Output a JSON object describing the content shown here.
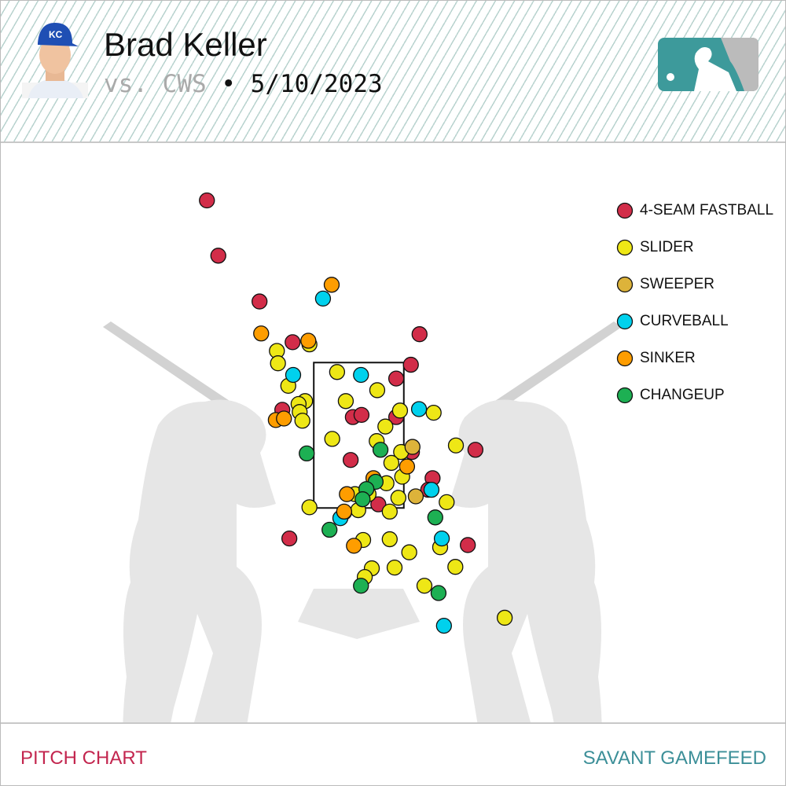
{
  "header": {
    "title": "Brad Keller",
    "opponent": "vs. CWS",
    "separator": "•",
    "date": "5/10/2023"
  },
  "chart_data": {
    "type": "scatter",
    "xlim": [
      -6.6,
      7.89
    ],
    "ylim": [
      -1.47,
      6.53
    ],
    "strike_zone": {
      "x": [
        -0.83,
        0.83
      ],
      "y": [
        1.5,
        3.5
      ]
    },
    "series": [
      {
        "name": "4-SEAM FASTBALL",
        "color": "#d22d49",
        "x": [
          -2.8,
          -2.59,
          -1.83,
          -1.22,
          1.12,
          0.96,
          0.69,
          -0.11,
          0.05,
          0.69,
          -0.15,
          0.98,
          2.15,
          1.36,
          1.28,
          0.36,
          -1.28,
          2.01,
          -1.41
        ],
        "y": [
          5.73,
          4.97,
          4.34,
          3.78,
          3.89,
          3.47,
          3.28,
          2.75,
          2.78,
          2.75,
          2.16,
          2.27,
          2.3,
          1.91,
          1.75,
          1.55,
          1.08,
          0.99,
          2.85
        ]
      },
      {
        "name": "SLIDER",
        "color": "#eee716",
        "x": [
          -1.51,
          -1.49,
          -0.91,
          -0.4,
          0.34,
          -1.3,
          -0.99,
          -1.11,
          -1.09,
          -1.04,
          -0.24,
          0.76,
          1.38,
          0.49,
          -0.49,
          0.33,
          0.78,
          0.6,
          1.79,
          0.8,
          0.51,
          1.62,
          0.73,
          -0.91,
          -0.01,
          0.57,
          -0.27,
          0.08,
          0.57,
          0.93,
          1.5,
          0.24,
          0.66,
          1.78,
          0.11,
          1.21,
          2.69,
          -0.07,
          0.18
        ],
        "y": [
          3.66,
          3.49,
          3.75,
          3.37,
          3.12,
          3.18,
          2.97,
          2.93,
          2.82,
          2.7,
          2.97,
          2.84,
          2.81,
          2.62,
          2.45,
          2.42,
          2.27,
          2.12,
          2.36,
          1.93,
          1.84,
          1.58,
          1.64,
          1.51,
          1.47,
          1.45,
          1.44,
          1.06,
          1.07,
          0.89,
          0.96,
          0.67,
          0.68,
          0.69,
          0.55,
          0.43,
          -0.01,
          1.69,
          1.69
        ]
      },
      {
        "name": "SWEEPER",
        "color": "#ddb33a",
        "x": [
          1.05,
          0.99
        ],
        "y": [
          1.66,
          2.34
        ]
      },
      {
        "name": "CURVEBALL",
        "color": "#00d1ed",
        "x": [
          -0.66,
          0.04,
          -1.21,
          1.11,
          -0.34,
          1.53,
          1.57,
          1.34
        ],
        "y": [
          4.38,
          3.33,
          3.33,
          2.86,
          1.36,
          1.08,
          -0.12,
          1.75
        ]
      },
      {
        "name": "SINKER",
        "color": "#fe9d00",
        "x": [
          -0.5,
          -1.8,
          -0.93,
          -1.53,
          -1.38,
          -0.22,
          0.89,
          0.27,
          -0.09,
          -0.27
        ],
        "y": [
          4.57,
          3.9,
          3.8,
          2.71,
          2.73,
          1.69,
          2.07,
          1.91,
          0.98,
          1.45
        ]
      },
      {
        "name": "CHANGEUP",
        "color": "#1db053",
        "x": [
          -0.96,
          0.4,
          0.31,
          0.14,
          0.07,
          -0.54,
          1.41,
          1.47,
          0.04
        ],
        "y": [
          2.25,
          2.3,
          1.86,
          1.76,
          1.62,
          1.2,
          1.37,
          0.33,
          0.43
        ]
      }
    ]
  },
  "footer": {
    "left": "PITCH CHART",
    "right": "SAVANT GAMEFEED"
  }
}
